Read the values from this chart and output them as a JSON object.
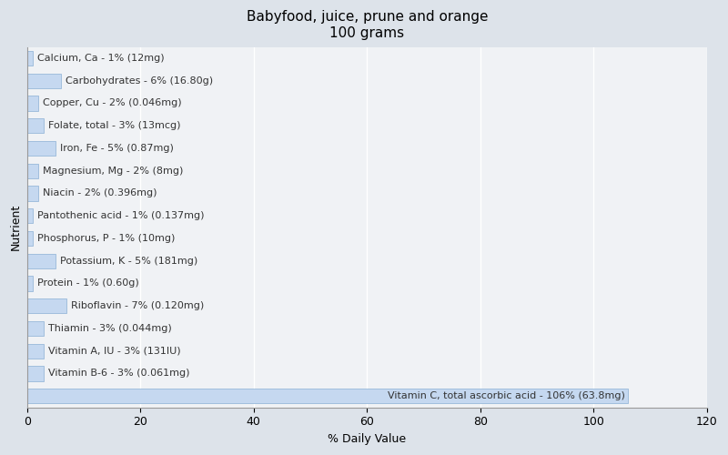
{
  "title": "Babyfood, juice, prune and orange\n100 grams",
  "xlabel": "% Daily Value",
  "ylabel": "Nutrient",
  "xlim": [
    0,
    120
  ],
  "xticks": [
    0,
    20,
    40,
    60,
    80,
    100,
    120
  ],
  "background_color": "#dde3ea",
  "plot_background_color": "#f0f2f5",
  "bar_color": "#c5d8f0",
  "bar_edge_color": "#8aafd4",
  "nutrients": [
    {
      "label": "Calcium, Ca - 1% (12mg)",
      "value": 1
    },
    {
      "label": "Carbohydrates - 6% (16.80g)",
      "value": 6
    },
    {
      "label": "Copper, Cu - 2% (0.046mg)",
      "value": 2
    },
    {
      "label": "Folate, total - 3% (13mcg)",
      "value": 3
    },
    {
      "label": "Iron, Fe - 5% (0.87mg)",
      "value": 5
    },
    {
      "label": "Magnesium, Mg - 2% (8mg)",
      "value": 2
    },
    {
      "label": "Niacin - 2% (0.396mg)",
      "value": 2
    },
    {
      "label": "Pantothenic acid - 1% (0.137mg)",
      "value": 1
    },
    {
      "label": "Phosphorus, P - 1% (10mg)",
      "value": 1
    },
    {
      "label": "Potassium, K - 5% (181mg)",
      "value": 5
    },
    {
      "label": "Protein - 1% (0.60g)",
      "value": 1
    },
    {
      "label": "Riboflavin - 7% (0.120mg)",
      "value": 7
    },
    {
      "label": "Thiamin - 3% (0.044mg)",
      "value": 3
    },
    {
      "label": "Vitamin A, IU - 3% (131IU)",
      "value": 3
    },
    {
      "label": "Vitamin B-6 - 3% (0.061mg)",
      "value": 3
    },
    {
      "label": "Vitamin C, total ascorbic acid - 106% (63.8mg)",
      "value": 106
    }
  ],
  "title_fontsize": 11,
  "label_fontsize": 8,
  "axis_label_fontsize": 9,
  "tick_fontsize": 9
}
